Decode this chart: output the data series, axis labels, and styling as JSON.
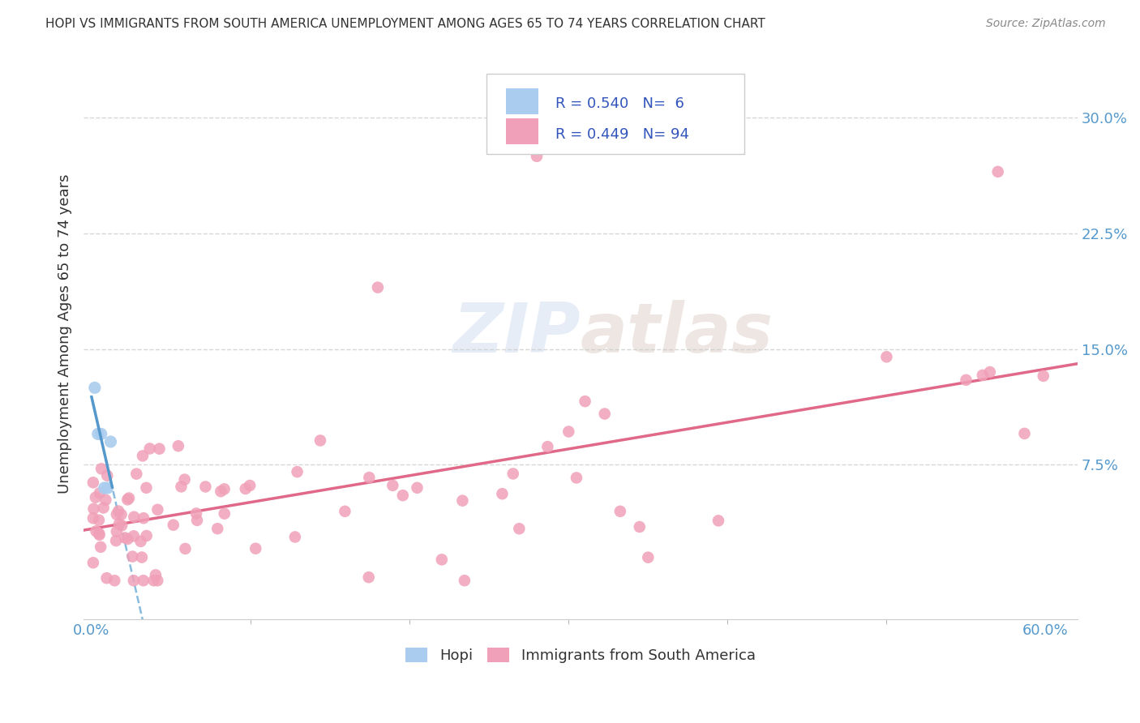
{
  "title": "HOPI VS IMMIGRANTS FROM SOUTH AMERICA UNEMPLOYMENT AMONG AGES 65 TO 74 YEARS CORRELATION CHART",
  "source": "Source: ZipAtlas.com",
  "ylabel": "Unemployment Among Ages 65 to 74 years",
  "xlim": [
    -0.005,
    0.62
  ],
  "ylim": [
    -0.025,
    0.345
  ],
  "yticks": [
    0.0,
    0.075,
    0.15,
    0.225,
    0.3
  ],
  "ytick_labels": [
    "",
    "7.5%",
    "15.0%",
    "22.5%",
    "30.0%"
  ],
  "xtick_labels_positions": [
    0.0,
    0.6
  ],
  "xtick_labels": [
    "0.0%",
    "60.0%"
  ],
  "hopi_x": [
    0.002,
    0.004,
    0.006,
    0.008,
    0.01,
    0.012
  ],
  "hopi_y": [
    0.125,
    0.095,
    0.095,
    0.06,
    0.06,
    0.09
  ],
  "hopi_color": "#aaccee",
  "hopi_R": 0.54,
  "hopi_N": 6,
  "pink_R": 0.449,
  "pink_N": 94,
  "pink_color": "#f0a0b8",
  "hopi_line_color": "#5599cc",
  "hopi_line_dash_color": "#88bbdd",
  "pink_line_color": "#e06888",
  "legend_R_color": "#3355bb",
  "watermark": "ZIPatlas",
  "background_color": "#ffffff",
  "grid_color": "#cccccc",
  "ylabel_color": "#333333",
  "tick_color": "#5599cc"
}
